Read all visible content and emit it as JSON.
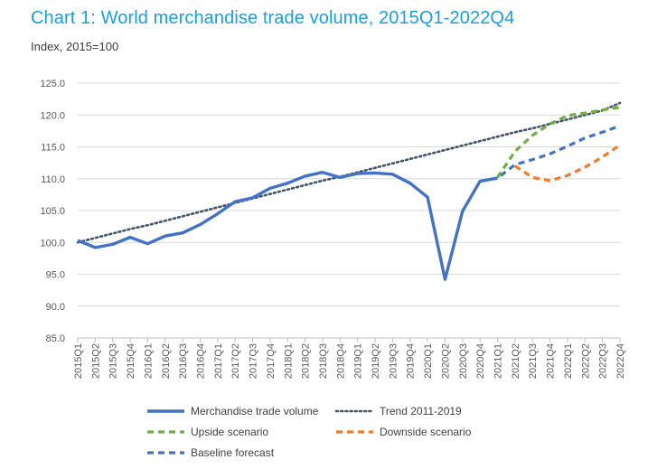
{
  "header": {
    "title": "Chart 1: World merchandise trade volume, 2015Q1-2022Q4",
    "subtitle": "Index, 2015=100"
  },
  "colors": {
    "title": "#1aa0d8",
    "actual": "#4472c4",
    "trend": "#44546a",
    "upside": "#70ad47",
    "downside": "#ed7d31",
    "baseline": "#4472c4",
    "grid": "#d9d9d9"
  },
  "chart_data": {
    "type": "line",
    "title": "Chart 1: World merchandise trade volume, 2015Q1-2022Q4",
    "ylabel": "Index, 2015=100",
    "xlabel": "",
    "ylim": [
      85,
      125
    ],
    "yticks": [
      "85.0",
      "90.0",
      "95.0",
      "100.0",
      "105.0",
      "110.0",
      "115.0",
      "120.0",
      "125.0"
    ],
    "grid": true,
    "legend_position": "bottom",
    "categories": [
      "2015Q1",
      "2015Q2",
      "2015Q3",
      "2015Q4",
      "2016Q1",
      "2016Q2",
      "2016Q3",
      "2016Q4",
      "2017Q1",
      "2017Q2",
      "2017Q3",
      "2017Q4",
      "2018Q1",
      "2018Q2",
      "2018Q3",
      "2018Q4",
      "2019Q1",
      "2019Q2",
      "2019Q3",
      "2019Q4",
      "2020Q1",
      "2020Q2",
      "2020Q3",
      "2020Q4",
      "2021Q1",
      "2021Q2",
      "2021Q3",
      "2021Q4",
      "2022Q1",
      "2022Q2",
      "2022Q3",
      "2022Q4"
    ],
    "series": [
      {
        "name": "Merchandise trade volume",
        "style": "solid",
        "values": [
          100.3,
          99.2,
          99.7,
          100.8,
          99.8,
          101.0,
          101.5,
          102.8,
          104.5,
          106.4,
          107.0,
          108.5,
          109.3,
          110.4,
          111.0,
          110.2,
          110.8,
          110.9,
          110.7,
          109.3,
          107.1,
          94.2,
          104.9,
          109.6,
          110.1,
          null,
          null,
          null,
          null,
          null,
          null,
          null
        ]
      },
      {
        "name": "Trend 2011-2019",
        "style": "dotted",
        "values": [
          100.0,
          100.7,
          101.4,
          102.1,
          102.7,
          103.4,
          104.1,
          104.8,
          105.5,
          106.2,
          106.9,
          107.6,
          108.3,
          109.0,
          109.7,
          110.3,
          111.0,
          111.7,
          112.4,
          113.1,
          113.8,
          114.5,
          115.2,
          115.9,
          116.6,
          117.3,
          117.9,
          118.6,
          119.3,
          120.0,
          120.7,
          121.9
        ]
      },
      {
        "name": "Upside scenario",
        "style": "dashed",
        "values": [
          null,
          null,
          null,
          null,
          null,
          null,
          null,
          null,
          null,
          null,
          null,
          null,
          null,
          null,
          null,
          null,
          null,
          null,
          null,
          null,
          null,
          null,
          null,
          null,
          110.2,
          114.3,
          116.8,
          118.6,
          119.9,
          120.3,
          120.8,
          121.2
        ]
      },
      {
        "name": "Downside scenario",
        "style": "dashed",
        "values": [
          null,
          null,
          null,
          null,
          null,
          null,
          null,
          null,
          null,
          null,
          null,
          null,
          null,
          null,
          null,
          null,
          null,
          null,
          null,
          null,
          null,
          null,
          null,
          null,
          null,
          112.0,
          110.2,
          109.7,
          110.5,
          111.8,
          113.4,
          115.3
        ]
      },
      {
        "name": "Baseline forecast",
        "style": "dashed",
        "values": [
          null,
          null,
          null,
          null,
          null,
          null,
          null,
          null,
          null,
          null,
          null,
          null,
          null,
          null,
          null,
          null,
          null,
          null,
          null,
          null,
          null,
          null,
          null,
          109.6,
          110.1,
          112.2,
          113.0,
          113.9,
          115.1,
          116.4,
          117.3,
          118.3
        ]
      }
    ],
    "legend": [
      {
        "label": "Merchandise trade volume",
        "series": 0
      },
      {
        "label": "Trend 2011-2019",
        "series": 1
      },
      {
        "label": "Upside scenario",
        "series": 2
      },
      {
        "label": "Downside scenario",
        "series": 3
      },
      {
        "label": "Baseline forecast",
        "series": 4
      }
    ]
  }
}
